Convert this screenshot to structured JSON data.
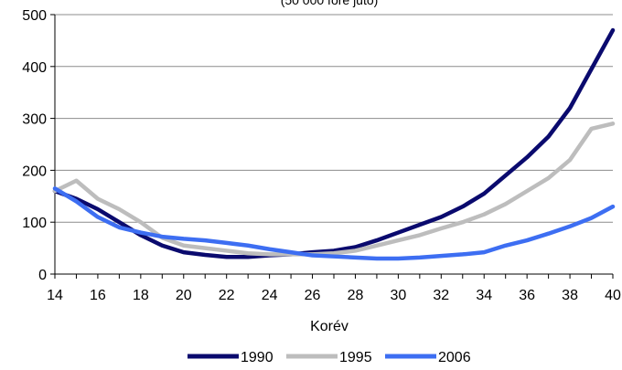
{
  "chart_data": {
    "type": "line",
    "title": "(50 000 főre jutó)",
    "xlabel": "Korév",
    "ylabel": "",
    "xlim": [
      14,
      40
    ],
    "ylim": [
      0,
      500
    ],
    "x_ticks": [
      14,
      16,
      18,
      20,
      22,
      24,
      26,
      28,
      30,
      32,
      34,
      36,
      38,
      40
    ],
    "y_ticks": [
      0,
      100,
      200,
      300,
      400,
      500
    ],
    "grid": "horizontal",
    "legend_position": "bottom",
    "x": [
      14,
      15,
      16,
      17,
      18,
      19,
      20,
      21,
      22,
      23,
      24,
      25,
      26,
      27,
      28,
      29,
      30,
      31,
      32,
      33,
      34,
      35,
      36,
      37,
      38,
      39,
      40
    ],
    "series": [
      {
        "name": "1990",
        "color": "#0a0a6e",
        "values": [
          160,
          145,
          125,
          100,
          75,
          55,
          42,
          37,
          33,
          33,
          36,
          38,
          42,
          45,
          52,
          65,
          80,
          95,
          110,
          130,
          155,
          190,
          225,
          265,
          320,
          395,
          470
        ]
      },
      {
        "name": "1995",
        "color": "#bdbdbd",
        "values": [
          160,
          180,
          145,
          125,
          100,
          70,
          55,
          50,
          45,
          40,
          38,
          38,
          38,
          40,
          45,
          55,
          65,
          75,
          88,
          100,
          115,
          135,
          160,
          185,
          220,
          280,
          290
        ]
      },
      {
        "name": "2006",
        "color": "#3d6ef2",
        "values": [
          165,
          140,
          110,
          90,
          80,
          72,
          68,
          65,
          60,
          55,
          48,
          42,
          36,
          34,
          32,
          30,
          30,
          32,
          35,
          38,
          42,
          55,
          65,
          78,
          92,
          108,
          130
        ]
      }
    ]
  }
}
